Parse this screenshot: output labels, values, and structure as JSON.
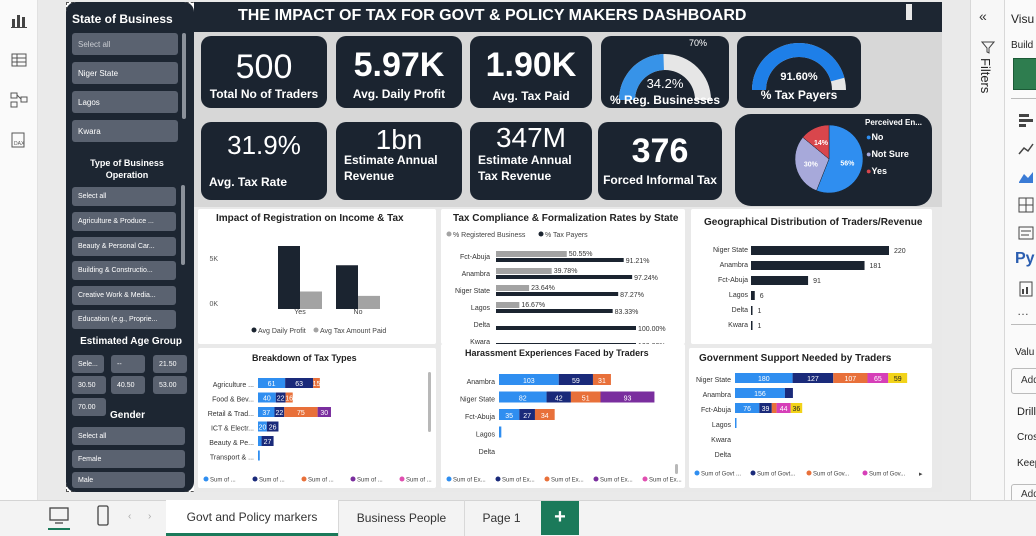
{
  "header": {
    "title": "THE IMPACT OF TAX FOR GOVT & POLICY MAKERS DASHBOARD"
  },
  "slicers": {
    "state": {
      "title": "State of Business",
      "items": [
        "Select all",
        "Niger State",
        "Lagos",
        "Kwara"
      ]
    },
    "business_type": {
      "title": "Type of Business Operation",
      "items": [
        "Select all",
        "Agriculture & Produce ...",
        "Beauty & Personal Car...",
        "Building & Constructio...",
        "Creative Work & Media...",
        "Education (e.g., Proprie..."
      ]
    },
    "age": {
      "title": "Estimated Age Group",
      "items": [
        "Sele...",
        "--",
        "21.50",
        "30.50",
        "40.50",
        "53.00",
        "70.00"
      ]
    },
    "gender": {
      "title": "Gender",
      "items": [
        "Select all",
        "Female",
        "Male"
      ]
    }
  },
  "kpis": {
    "traders": {
      "value": "500",
      "label": "Total No of Traders"
    },
    "profit": {
      "value": "5.97K",
      "label": "Avg. Daily Profit"
    },
    "tax_paid": {
      "value": "1.90K",
      "label": "Avg. Tax Paid"
    },
    "reg": {
      "value": "34.2%",
      "label": "% Reg. Businesses",
      "max": "70%",
      "fraction": 0.489
    },
    "taxpayers": {
      "value": "91.60%",
      "label": "% Tax Payers",
      "fraction": 0.916
    },
    "tax_rate": {
      "value": "31.9%",
      "label": "Avg. Tax Rate"
    },
    "revenue": {
      "value": "1bn",
      "label": "Estimate Annual Revenue"
    },
    "tax_revenue": {
      "value": "347M",
      "label": "Estimate Annual Tax Revenue"
    },
    "forced": {
      "value": "376",
      "label": "Forced Informal Tax"
    }
  },
  "pie": {
    "legend_title": "Perceived En...",
    "slices": [
      {
        "name": "No",
        "pct": 56,
        "label": "56%",
        "color": "#2f8ef0"
      },
      {
        "name": "Not Sure",
        "pct": 30,
        "label": "30%",
        "color": "#a7a9da"
      },
      {
        "name": "Yes",
        "pct": 14,
        "label": "14%",
        "color": "#d9464c"
      }
    ]
  },
  "chart_data": [
    {
      "type": "bar",
      "title": "Impact of Registration on Income & Tax",
      "categories": [
        "Yes",
        "No"
      ],
      "series": [
        {
          "name": "Avg Daily Profit",
          "values": [
            7200,
            5000
          ],
          "color": "#1b2430"
        },
        {
          "name": "Avg Tax Amount Paid",
          "values": [
            2000,
            1500
          ],
          "color": "#a3a3a3"
        }
      ],
      "yticks": [
        "5K",
        "0K"
      ],
      "ylim": [
        0,
        8000
      ]
    },
    {
      "type": "bar",
      "title": "Tax Compliance & Formalization Rates by State",
      "categories": [
        "Fct-Abuja",
        "Anambra",
        "Niger State",
        "Lagos",
        "Delta",
        "Kwara"
      ],
      "series": [
        {
          "name": "% Registered Business",
          "values": [
            50.55,
            39.78,
            23.64,
            16.67,
            null,
            null
          ],
          "labels": [
            "50.55%",
            "39.78%",
            "23.64%",
            "16.67%",
            "",
            ""
          ],
          "color": "#a3a3a3"
        },
        {
          "name": "% Tax Payers",
          "values": [
            91.21,
            97.24,
            87.27,
            83.33,
            100,
            100
          ],
          "labels": [
            "91.21%",
            "97.24%",
            "87.27%",
            "83.33%",
            "100.00%",
            "100.00%"
          ],
          "color": "#1b2430"
        }
      ]
    },
    {
      "type": "bar",
      "title": "Geographical Distribution of Traders/Revenue",
      "categories": [
        "Niger State",
        "Anambra",
        "Fct-Abuja",
        "Lagos",
        "Delta",
        "Kwara"
      ],
      "values": [
        220,
        181,
        91,
        6,
        1,
        1
      ],
      "labels": [
        "220",
        "181",
        "91",
        "6",
        "1",
        "1"
      ]
    },
    {
      "type": "bar",
      "title": "Breakdown of Tax Types",
      "categories": [
        "Agriculture ...",
        "Food & Bev...",
        "Retail & Trad...",
        "ICT & Electr...",
        "Beauty & Pe...",
        "Transport & ..."
      ],
      "stacks": [
        [
          {
            "v": 61,
            "l": "61"
          },
          {
            "v": 63,
            "l": "63"
          },
          {
            "v": 15,
            "l": "15"
          }
        ],
        [
          {
            "v": 40,
            "l": "40"
          },
          {
            "v": 22,
            "l": "22"
          },
          {
            "v": 16,
            "l": "16"
          }
        ],
        [
          {
            "v": 37,
            "l": "37"
          },
          {
            "v": 22,
            "l": "22"
          },
          {
            "v": 75,
            "l": "75"
          },
          {
            "v": 30,
            "l": "30"
          }
        ],
        [
          {
            "v": 20,
            "l": "20"
          },
          {
            "v": 26,
            "l": "26"
          }
        ],
        [
          {
            "v": 8,
            "l": ""
          },
          {
            "v": 27,
            "l": "27"
          }
        ],
        [
          {
            "v": 4,
            "l": ""
          }
        ]
      ],
      "legend": [
        "Sum of ...",
        "Sum of ...",
        "Sum of ...",
        "Sum of ...",
        "Sum of ..."
      ]
    },
    {
      "type": "bar",
      "title": "Harassment Experiences Faced by Traders",
      "categories": [
        "Anambra",
        "Niger State",
        "Fct-Abuja",
        "Lagos",
        "Delta"
      ],
      "stacks": [
        [
          {
            "v": 103,
            "l": "103"
          },
          {
            "v": 59,
            "l": "59"
          },
          {
            "v": 31,
            "l": "31"
          }
        ],
        [
          {
            "v": 82,
            "l": "82"
          },
          {
            "v": 42,
            "l": "42"
          },
          {
            "v": 51,
            "l": "51"
          },
          {
            "v": 93,
            "l": "93"
          }
        ],
        [
          {
            "v": 35,
            "l": "35"
          },
          {
            "v": 27,
            "l": "27"
          },
          {
            "v": 34,
            "l": "34"
          }
        ],
        [
          {
            "v": 4,
            "l": ""
          }
        ],
        []
      ],
      "legend": [
        "Sum of Ex...",
        "Sum of Ex...",
        "Sum of Ex...",
        "Sum of Ex...",
        "Sum of Ex..."
      ]
    },
    {
      "type": "bar",
      "title": "Government Support Needed by Traders",
      "categories": [
        "Niger State",
        "Anambra",
        "Fct-Abuja",
        "Lagos",
        "Kwara",
        "Delta"
      ],
      "stacks": [
        [
          {
            "v": 180,
            "l": "180"
          },
          {
            "v": 127,
            "l": "127"
          },
          {
            "v": 107,
            "l": "107"
          },
          {
            "v": 65,
            "l": "65"
          },
          {
            "v": 59,
            "l": "59"
          }
        ],
        [
          {
            "v": 156,
            "l": "156"
          },
          {
            "v": 25,
            "l": ""
          }
        ],
        [
          {
            "v": 76,
            "l": "76"
          },
          {
            "v": 39,
            "l": "39"
          },
          {
            "v": 15,
            "l": ""
          },
          {
            "v": 44,
            "l": "44"
          },
          {
            "v": 36,
            "l": "36"
          }
        ],
        [
          {
            "v": 2,
            "l": ""
          }
        ],
        [],
        []
      ],
      "legend": [
        "Sum of Govt ...",
        "Sum of Govt...",
        "Sum of Gov...",
        "Sum of Gov..."
      ]
    }
  ],
  "stack_colors": [
    "#2f8ef0",
    "#1a2a7a",
    "#e8703a",
    "#7a2e9e",
    "#e04fb0"
  ],
  "support_colors": [
    "#2f8ef0",
    "#1a2a7a",
    "#e8703a",
    "#d63fb8",
    "#f2d31a"
  ],
  "tabs": [
    "Govt and Policy markers",
    "Business People",
    "Page 1"
  ],
  "panes": {
    "filters": "Filters",
    "visual": "Visu",
    "build": "Build",
    "values": "Valu",
    "add": "Add",
    "drill": "Drill",
    "cross": "Cros",
    "keep": "Keep",
    "add2": "Add",
    "py": "Py"
  }
}
